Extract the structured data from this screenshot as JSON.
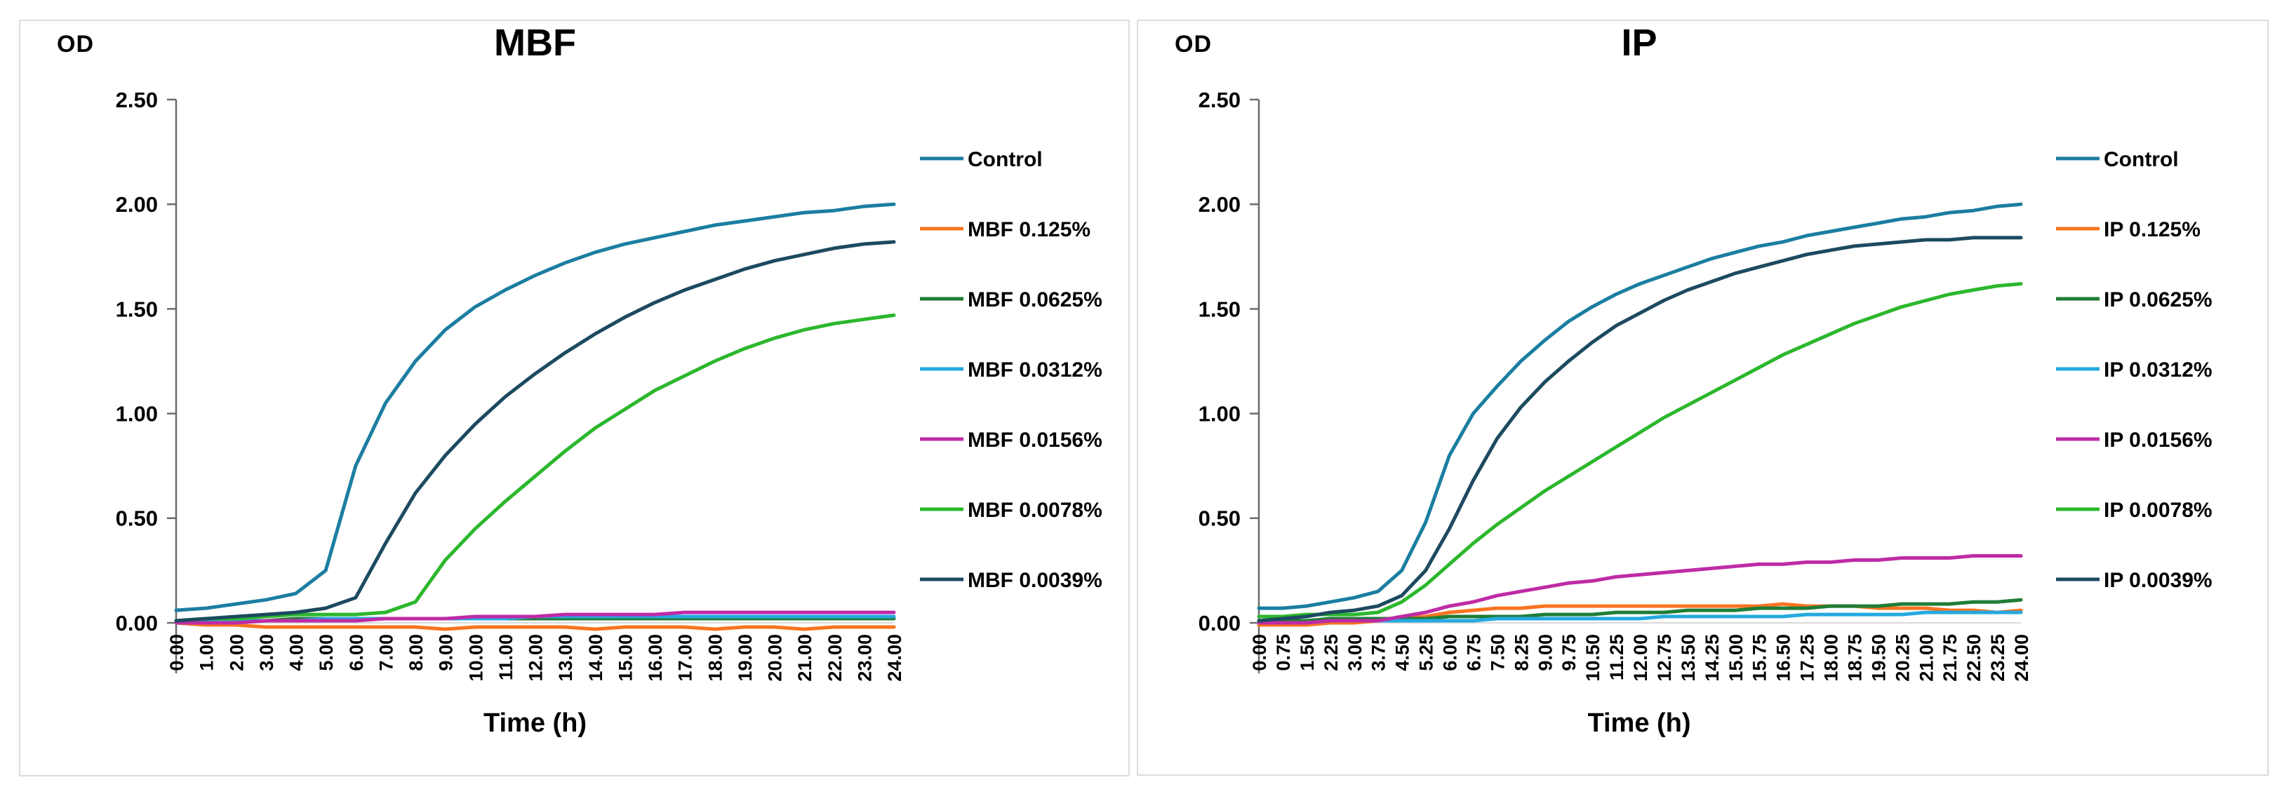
{
  "colors": {
    "background": "#FFFFFF",
    "panel_border": "#DBDBDB",
    "axis": "#6B6B6B",
    "zero_line": "#D9D9D9",
    "text": "#000000"
  },
  "chart_data": [
    {
      "type": "line",
      "title": "MBF",
      "ylabel": "OD",
      "xlabel": "Time (h)",
      "ylim": [
        0,
        2.5
      ],
      "ytick_step": 0.5,
      "ytick_labels": [
        "0.00",
        "0.50",
        "1.00",
        "1.50",
        "2.00",
        "2.50"
      ],
      "legend_position": "right",
      "grid": "zero-line-only",
      "x": [
        0,
        1,
        2,
        3,
        4,
        5,
        6,
        7,
        8,
        9,
        10,
        11,
        12,
        13,
        14,
        15,
        16,
        17,
        18,
        19,
        20,
        21,
        22,
        23,
        24
      ],
      "xtick_labels": [
        "0.00",
        "1.00",
        "2.00",
        "3.00",
        "4.00",
        "5.00",
        "6.00",
        "7.00",
        "8.00",
        "9.00",
        "10.00",
        "11.00",
        "12.00",
        "13.00",
        "14.00",
        "15.00",
        "16.00",
        "17.00",
        "18.00",
        "19.00",
        "20.00",
        "21.00",
        "22.00",
        "23.00",
        "24.00"
      ],
      "series": [
        {
          "name": "Control",
          "color": "#1B7EA1",
          "values": [
            0.06,
            0.07,
            0.09,
            0.11,
            0.14,
            0.25,
            0.75,
            1.05,
            1.25,
            1.4,
            1.51,
            1.59,
            1.66,
            1.72,
            1.77,
            1.81,
            1.84,
            1.87,
            1.9,
            1.92,
            1.94,
            1.96,
            1.97,
            1.99,
            2.0
          ]
        },
        {
          "name": "MBF 0.125%",
          "color": "#F87420",
          "values": [
            0.0,
            -0.01,
            -0.01,
            -0.02,
            -0.02,
            -0.02,
            -0.02,
            -0.02,
            -0.02,
            -0.03,
            -0.02,
            -0.02,
            -0.02,
            -0.02,
            -0.03,
            -0.02,
            -0.02,
            -0.02,
            -0.03,
            -0.02,
            -0.02,
            -0.03,
            -0.02,
            -0.02,
            -0.02
          ]
        },
        {
          "name": "MBF 0.0625%",
          "color": "#1F7D36",
          "values": [
            0.01,
            0.01,
            0.01,
            0.01,
            0.02,
            0.02,
            0.02,
            0.02,
            0.02,
            0.02,
            0.02,
            0.02,
            0.02,
            0.02,
            0.02,
            0.02,
            0.02,
            0.02,
            0.02,
            0.02,
            0.02,
            0.02,
            0.02,
            0.02,
            0.02
          ]
        },
        {
          "name": "MBF 0.0312%",
          "color": "#25A9E0",
          "values": [
            0.01,
            0.01,
            0.01,
            0.01,
            0.01,
            0.02,
            0.02,
            0.02,
            0.02,
            0.02,
            0.02,
            0.02,
            0.03,
            0.03,
            0.03,
            0.03,
            0.03,
            0.03,
            0.03,
            0.03,
            0.03,
            0.03,
            0.03,
            0.03,
            0.03
          ]
        },
        {
          "name": "MBF 0.0156%",
          "color": "#BE2BA6",
          "values": [
            0.0,
            0.0,
            0.0,
            0.01,
            0.01,
            0.01,
            0.01,
            0.02,
            0.02,
            0.02,
            0.03,
            0.03,
            0.03,
            0.04,
            0.04,
            0.04,
            0.04,
            0.05,
            0.05,
            0.05,
            0.05,
            0.05,
            0.05,
            0.05,
            0.05
          ]
        },
        {
          "name": "MBF 0.0078%",
          "color": "#2CB72D",
          "values": [
            0.01,
            0.02,
            0.02,
            0.03,
            0.04,
            0.04,
            0.04,
            0.05,
            0.1,
            0.3,
            0.45,
            0.58,
            0.7,
            0.82,
            0.93,
            1.02,
            1.11,
            1.18,
            1.25,
            1.31,
            1.36,
            1.4,
            1.43,
            1.45,
            1.47
          ]
        },
        {
          "name": "MBF 0.0039%",
          "color": "#1C4A60",
          "values": [
            0.01,
            0.02,
            0.03,
            0.04,
            0.05,
            0.07,
            0.12,
            0.38,
            0.62,
            0.8,
            0.95,
            1.08,
            1.19,
            1.29,
            1.38,
            1.46,
            1.53,
            1.59,
            1.64,
            1.69,
            1.73,
            1.76,
            1.79,
            1.81,
            1.82
          ]
        }
      ]
    },
    {
      "type": "line",
      "title": "IP",
      "ylabel": "OD",
      "xlabel": "Time (h)",
      "ylim": [
        0,
        2.5
      ],
      "ytick_step": 0.5,
      "ytick_labels": [
        "0.00",
        "0.50",
        "1.00",
        "1.50",
        "2.00",
        "2.50"
      ],
      "legend_position": "right",
      "grid": "zero-line-only",
      "x": [
        0,
        0.75,
        1.5,
        2.25,
        3,
        3.75,
        4.5,
        5.25,
        6,
        6.75,
        7.5,
        8.25,
        9,
        9.75,
        10.5,
        11.25,
        12,
        12.75,
        13.5,
        14.25,
        15,
        15.75,
        16.5,
        17.25,
        18,
        18.75,
        19.5,
        20.25,
        21,
        21.75,
        22.5,
        23.25,
        24
      ],
      "xtick_labels": [
        "0.00",
        "0.75",
        "1.50",
        "2.25",
        "3.00",
        "3.75",
        "4.50",
        "5.25",
        "6.00",
        "6.75",
        "7.50",
        "8.25",
        "9.00",
        "9.75",
        "10.50",
        "11.25",
        "12.00",
        "12.75",
        "13.50",
        "14.25",
        "15.00",
        "15.75",
        "16.50",
        "17.25",
        "18.00",
        "18.75",
        "19.50",
        "20.25",
        "21.00",
        "21.75",
        "22.50",
        "23.25",
        "24.00"
      ],
      "series": [
        {
          "name": "Control",
          "color": "#1B7EA1",
          "values": [
            0.07,
            0.07,
            0.08,
            0.1,
            0.12,
            0.15,
            0.25,
            0.48,
            0.8,
            1.0,
            1.13,
            1.25,
            1.35,
            1.44,
            1.51,
            1.57,
            1.62,
            1.66,
            1.7,
            1.74,
            1.77,
            1.8,
            1.82,
            1.85,
            1.87,
            1.89,
            1.91,
            1.93,
            1.94,
            1.96,
            1.97,
            1.99,
            2.0
          ]
        },
        {
          "name": "IP 0.125%",
          "color": "#F87420",
          "values": [
            -0.01,
            -0.01,
            -0.01,
            0.0,
            0.0,
            0.01,
            0.02,
            0.03,
            0.05,
            0.06,
            0.07,
            0.07,
            0.08,
            0.08,
            0.08,
            0.08,
            0.08,
            0.08,
            0.08,
            0.08,
            0.08,
            0.08,
            0.09,
            0.08,
            0.08,
            0.08,
            0.07,
            0.07,
            0.07,
            0.06,
            0.06,
            0.05,
            0.06
          ]
        },
        {
          "name": "IP 0.0625%",
          "color": "#1F7D36",
          "values": [
            0.01,
            0.01,
            0.01,
            0.02,
            0.02,
            0.02,
            0.02,
            0.02,
            0.03,
            0.03,
            0.03,
            0.03,
            0.04,
            0.04,
            0.04,
            0.05,
            0.05,
            0.05,
            0.06,
            0.06,
            0.06,
            0.07,
            0.07,
            0.07,
            0.08,
            0.08,
            0.08,
            0.09,
            0.09,
            0.09,
            0.1,
            0.1,
            0.11
          ]
        },
        {
          "name": "IP 0.0312%",
          "color": "#25A9E0",
          "values": [
            0.0,
            0.0,
            0.0,
            0.01,
            0.01,
            0.01,
            0.01,
            0.01,
            0.01,
            0.01,
            0.02,
            0.02,
            0.02,
            0.02,
            0.02,
            0.02,
            0.02,
            0.03,
            0.03,
            0.03,
            0.03,
            0.03,
            0.03,
            0.04,
            0.04,
            0.04,
            0.04,
            0.04,
            0.05,
            0.05,
            0.05,
            0.05,
            0.05
          ]
        },
        {
          "name": "IP 0.0156%",
          "color": "#BE2BA6",
          "values": [
            0.0,
            0.0,
            0.0,
            0.01,
            0.01,
            0.01,
            0.03,
            0.05,
            0.08,
            0.1,
            0.13,
            0.15,
            0.17,
            0.19,
            0.2,
            0.22,
            0.23,
            0.24,
            0.25,
            0.26,
            0.27,
            0.28,
            0.28,
            0.29,
            0.29,
            0.3,
            0.3,
            0.31,
            0.31,
            0.31,
            0.32,
            0.32,
            0.32
          ]
        },
        {
          "name": "IP 0.0078%",
          "color": "#2CB72D",
          "values": [
            0.03,
            0.03,
            0.04,
            0.04,
            0.04,
            0.05,
            0.1,
            0.18,
            0.28,
            0.38,
            0.47,
            0.55,
            0.63,
            0.7,
            0.77,
            0.84,
            0.91,
            0.98,
            1.04,
            1.1,
            1.16,
            1.22,
            1.28,
            1.33,
            1.38,
            1.43,
            1.47,
            1.51,
            1.54,
            1.57,
            1.59,
            1.61,
            1.62
          ]
        },
        {
          "name": "IP 0.0039%",
          "color": "#1C4A60",
          "values": [
            0.01,
            0.02,
            0.03,
            0.05,
            0.06,
            0.08,
            0.13,
            0.25,
            0.45,
            0.68,
            0.88,
            1.03,
            1.15,
            1.25,
            1.34,
            1.42,
            1.48,
            1.54,
            1.59,
            1.63,
            1.67,
            1.7,
            1.73,
            1.76,
            1.78,
            1.8,
            1.81,
            1.82,
            1.83,
            1.83,
            1.84,
            1.84,
            1.84
          ]
        }
      ]
    }
  ]
}
